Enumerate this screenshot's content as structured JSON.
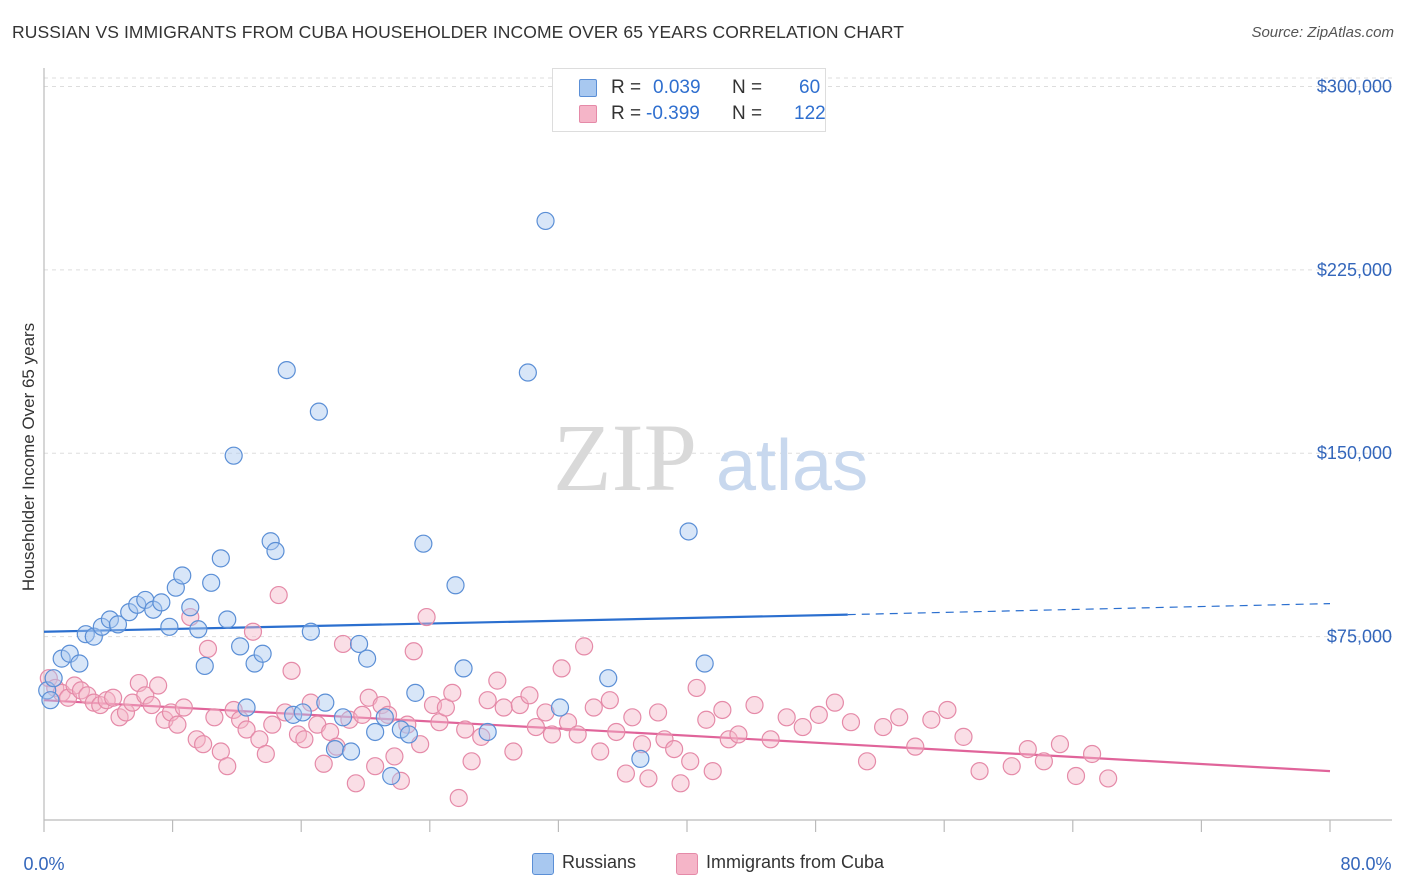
{
  "title": "RUSSIAN VS IMMIGRANTS FROM CUBA HOUSEHOLDER INCOME OVER 65 YEARS CORRELATION CHART",
  "source": "Source: ZipAtlas.com",
  "watermark": {
    "zip": "ZIP",
    "atlas": "atlas"
  },
  "colors": {
    "russians_fill": "#a8c8f0",
    "russians_stroke": "#5b8fd6",
    "russians_line": "#2b6fcf",
    "cuba_fill": "#f5b5c8",
    "cuba_stroke": "#e58aa8",
    "cuba_line": "#e0649a",
    "grid": "#dddddd",
    "axis_text": "#3366bb"
  },
  "legend": {
    "rows": [
      {
        "r_label": "R =",
        "r_value": "0.039",
        "n_label": "N =",
        "n_value": "60"
      },
      {
        "r_label": "R =",
        "r_value": "-0.399",
        "n_label": "N =",
        "n_value": "122"
      }
    ]
  },
  "bottom_legend": {
    "russians": "Russians",
    "cuba": "Immigrants from Cuba"
  },
  "chart_data": {
    "type": "scatter",
    "title": "RUSSIAN VS IMMIGRANTS FROM CUBA HOUSEHOLDER INCOME OVER 65 YEARS CORRELATION CHART",
    "xlabel": "",
    "ylabel": "Householder Income Over 65 years",
    "xlim": [
      0,
      80
    ],
    "ylim": [
      0,
      310000
    ],
    "x_tick_labels": {
      "min": "0.0%",
      "max": "80.0%"
    },
    "y_ticks": [
      {
        "value": 75000,
        "label": "$75,000"
      },
      {
        "value": 150000,
        "label": "$150,000"
      },
      {
        "value": 225000,
        "label": "$225,000"
      },
      {
        "value": 300000,
        "label": "$300,000"
      }
    ],
    "series": [
      {
        "name": "Russians",
        "R": 0.039,
        "N": 60,
        "trend": {
          "x0": 0,
          "y0": 77000,
          "x1": 50,
          "y1": 84000,
          "x_dash_end": 80,
          "y_dash_end": 88500
        },
        "points": [
          [
            0.2,
            53000
          ],
          [
            0.6,
            58000
          ],
          [
            1.1,
            66000
          ],
          [
            1.6,
            68000
          ],
          [
            2.2,
            64000
          ],
          [
            2.6,
            76000
          ],
          [
            3.1,
            75000
          ],
          [
            3.6,
            79000
          ],
          [
            4.1,
            82000
          ],
          [
            4.6,
            80000
          ],
          [
            5.3,
            85000
          ],
          [
            5.8,
            88000
          ],
          [
            6.3,
            90000
          ],
          [
            6.8,
            86000
          ],
          [
            7.3,
            89000
          ],
          [
            7.8,
            79000
          ],
          [
            8.2,
            95000
          ],
          [
            8.6,
            100000
          ],
          [
            9.1,
            87000
          ],
          [
            9.6,
            78000
          ],
          [
            10.0,
            63000
          ],
          [
            10.4,
            97000
          ],
          [
            11.0,
            107000
          ],
          [
            11.4,
            82000
          ],
          [
            11.8,
            149000
          ],
          [
            12.2,
            71000
          ],
          [
            12.6,
            46000
          ],
          [
            13.1,
            64000
          ],
          [
            13.6,
            68000
          ],
          [
            14.1,
            114000
          ],
          [
            14.4,
            110000
          ],
          [
            15.1,
            184000
          ],
          [
            15.5,
            43000
          ],
          [
            16.1,
            44000
          ],
          [
            16.6,
            77000
          ],
          [
            17.1,
            167000
          ],
          [
            17.5,
            48000
          ],
          [
            18.1,
            29000
          ],
          [
            18.6,
            42000
          ],
          [
            19.1,
            28000
          ],
          [
            19.6,
            72000
          ],
          [
            20.1,
            66000
          ],
          [
            20.6,
            36000
          ],
          [
            21.2,
            42000
          ],
          [
            21.6,
            18000
          ],
          [
            22.2,
            37000
          ],
          [
            22.7,
            35000
          ],
          [
            23.1,
            52000
          ],
          [
            23.6,
            113000
          ],
          [
            25.6,
            96000
          ],
          [
            26.1,
            62000
          ],
          [
            27.6,
            36000
          ],
          [
            30.1,
            183000
          ],
          [
            31.2,
            245000
          ],
          [
            32.1,
            46000
          ],
          [
            35.1,
            58000
          ],
          [
            37.1,
            25000
          ],
          [
            40.1,
            118000
          ],
          [
            41.1,
            64000
          ],
          [
            0.4,
            49000
          ]
        ]
      },
      {
        "name": "Immigrants from Cuba",
        "R": -0.399,
        "N": 122,
        "trend": {
          "x0": 0,
          "y0": 49000,
          "x1": 80,
          "y1": 20000
        },
        "points": [
          [
            0.3,
            58000
          ],
          [
            0.7,
            54000
          ],
          [
            1.1,
            52000
          ],
          [
            1.5,
            50000
          ],
          [
            1.9,
            55000
          ],
          [
            2.3,
            53000
          ],
          [
            2.7,
            51000
          ],
          [
            3.1,
            48000
          ],
          [
            3.5,
            47000
          ],
          [
            3.9,
            49000
          ],
          [
            4.3,
            50000
          ],
          [
            4.7,
            42000
          ],
          [
            5.1,
            44000
          ],
          [
            5.5,
            48000
          ],
          [
            5.9,
            56000
          ],
          [
            6.3,
            51000
          ],
          [
            6.7,
            47000
          ],
          [
            7.1,
            55000
          ],
          [
            7.5,
            41000
          ],
          [
            7.9,
            44000
          ],
          [
            8.3,
            39000
          ],
          [
            8.7,
            46000
          ],
          [
            9.1,
            83000
          ],
          [
            9.5,
            33000
          ],
          [
            9.9,
            31000
          ],
          [
            10.2,
            70000
          ],
          [
            10.6,
            42000
          ],
          [
            11.0,
            28000
          ],
          [
            11.4,
            22000
          ],
          [
            11.8,
            45000
          ],
          [
            12.2,
            41000
          ],
          [
            12.6,
            37000
          ],
          [
            13.0,
            77000
          ],
          [
            13.4,
            33000
          ],
          [
            13.8,
            27000
          ],
          [
            14.2,
            39000
          ],
          [
            14.6,
            92000
          ],
          [
            15.0,
            44000
          ],
          [
            15.4,
            61000
          ],
          [
            15.8,
            35000
          ],
          [
            16.2,
            33000
          ],
          [
            16.6,
            48000
          ],
          [
            17.0,
            39000
          ],
          [
            17.4,
            23000
          ],
          [
            17.8,
            36000
          ],
          [
            18.2,
            30000
          ],
          [
            18.6,
            72000
          ],
          [
            19.0,
            41000
          ],
          [
            19.4,
            15000
          ],
          [
            19.8,
            43000
          ],
          [
            20.2,
            50000
          ],
          [
            20.6,
            22000
          ],
          [
            21.0,
            47000
          ],
          [
            21.4,
            43000
          ],
          [
            21.8,
            26000
          ],
          [
            22.2,
            16000
          ],
          [
            22.6,
            39000
          ],
          [
            23.0,
            69000
          ],
          [
            23.4,
            31000
          ],
          [
            23.8,
            83000
          ],
          [
            24.2,
            47000
          ],
          [
            24.6,
            40000
          ],
          [
            25.0,
            46000
          ],
          [
            25.4,
            52000
          ],
          [
            25.8,
            9000
          ],
          [
            26.2,
            37000
          ],
          [
            26.6,
            24000
          ],
          [
            27.2,
            34000
          ],
          [
            27.6,
            49000
          ],
          [
            28.2,
            57000
          ],
          [
            28.6,
            46000
          ],
          [
            29.2,
            28000
          ],
          [
            29.6,
            47000
          ],
          [
            30.2,
            51000
          ],
          [
            30.6,
            38000
          ],
          [
            31.2,
            44000
          ],
          [
            31.6,
            35000
          ],
          [
            32.2,
            62000
          ],
          [
            32.6,
            40000
          ],
          [
            33.2,
            35000
          ],
          [
            33.6,
            71000
          ],
          [
            34.2,
            46000
          ],
          [
            34.6,
            28000
          ],
          [
            35.2,
            49000
          ],
          [
            35.6,
            36000
          ],
          [
            36.2,
            19000
          ],
          [
            36.6,
            42000
          ],
          [
            37.2,
            31000
          ],
          [
            37.6,
            17000
          ],
          [
            38.2,
            44000
          ],
          [
            38.6,
            33000
          ],
          [
            39.2,
            29000
          ],
          [
            39.6,
            15000
          ],
          [
            40.2,
            24000
          ],
          [
            40.6,
            54000
          ],
          [
            41.2,
            41000
          ],
          [
            41.6,
            20000
          ],
          [
            42.2,
            45000
          ],
          [
            42.6,
            33000
          ],
          [
            43.2,
            35000
          ],
          [
            44.2,
            47000
          ],
          [
            45.2,
            33000
          ],
          [
            46.2,
            42000
          ],
          [
            47.2,
            38000
          ],
          [
            48.2,
            43000
          ],
          [
            49.2,
            48000
          ],
          [
            50.2,
            40000
          ],
          [
            51.2,
            24000
          ],
          [
            52.2,
            38000
          ],
          [
            53.2,
            42000
          ],
          [
            54.2,
            30000
          ],
          [
            55.2,
            41000
          ],
          [
            56.2,
            45000
          ],
          [
            57.2,
            34000
          ],
          [
            58.2,
            20000
          ],
          [
            60.2,
            22000
          ],
          [
            61.2,
            29000
          ],
          [
            62.2,
            24000
          ],
          [
            63.2,
            31000
          ],
          [
            64.2,
            18000
          ],
          [
            65.2,
            27000
          ],
          [
            66.2,
            17000
          ]
        ]
      }
    ]
  }
}
